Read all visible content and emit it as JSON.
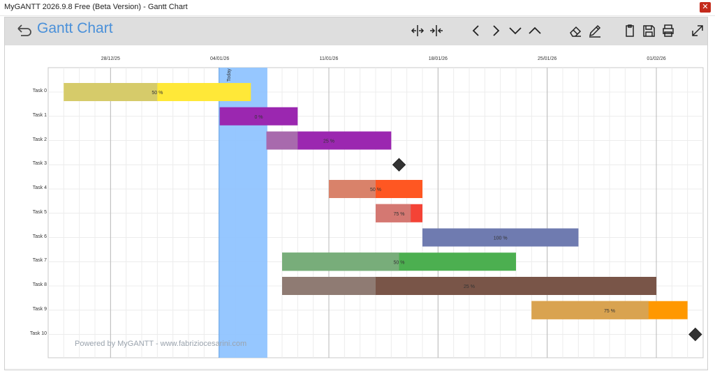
{
  "window": {
    "title": "MyGANTT 2026.9.8 Free (Beta Version) - Gantt Chart",
    "close_glyph": "✕"
  },
  "toolbar": {
    "title": "Gantt Chart",
    "icons": [
      "back-icon",
      "expand-columns-icon",
      "collapse-columns-icon",
      "chevron-left-icon",
      "chevron-right-icon",
      "chevron-down-icon",
      "chevron-up-icon",
      "eraser-icon",
      "pencil-icon",
      "clipboard-icon",
      "save-icon",
      "print-icon",
      "fullscreen-icon"
    ]
  },
  "footer": {
    "watermark": "Powered by MyGANTT - www.fabriziocesarini.com"
  },
  "chart_data": {
    "type": "gantt",
    "today_label": "Today",
    "today": "2026-01-04",
    "x_range": [
      "2025-12-24",
      "2026-02-04"
    ],
    "date_ticks": [
      {
        "label": "28/12/25",
        "date": "2025-12-28"
      },
      {
        "label": "04/01/26",
        "date": "2026-01-04"
      },
      {
        "label": "11/01/26",
        "date": "2026-01-11"
      },
      {
        "label": "18/01/26",
        "date": "2026-01-18"
      },
      {
        "label": "25/01/26",
        "date": "2026-01-25"
      },
      {
        "label": "01/02/26",
        "date": "2026-02-01"
      }
    ],
    "tasks": [
      {
        "name": "Task 0",
        "start": "2025-12-25",
        "end": "2026-01-06",
        "progress": 50,
        "color": "#ffe838",
        "done_color": "#d6cb6a",
        "label": "50 %"
      },
      {
        "name": "Task 1",
        "start": "2026-01-04",
        "end": "2026-01-09",
        "progress": 0,
        "color": "#9b27b0",
        "done_color": "#9b27b0",
        "label": "0 %"
      },
      {
        "name": "Task 2",
        "start": "2026-01-07",
        "end": "2026-01-15",
        "progress": 25,
        "color": "#9b27b0",
        "done_color": "#a86aad",
        "label": "25 %"
      },
      {
        "name": "Task 3",
        "milestone": "2026-01-15"
      },
      {
        "name": "Task 4",
        "start": "2026-01-11",
        "end": "2026-01-17",
        "progress": 50,
        "color": "#ff5722",
        "done_color": "#d9826a",
        "label": "50 %"
      },
      {
        "name": "Task 5",
        "start": "2026-01-14",
        "end": "2026-01-17",
        "progress": 75,
        "color": "#f44336",
        "done_color": "#d47872",
        "label": "75 %"
      },
      {
        "name": "Task 6",
        "start": "2026-01-17",
        "end": "2026-01-27",
        "progress": 100,
        "color": "#6f7bb0",
        "done_color": "#6f7bb0",
        "label": "100 %"
      },
      {
        "name": "Task 7",
        "start": "2026-01-08",
        "end": "2026-01-23",
        "progress": 50,
        "color": "#4caf50",
        "done_color": "#78ad7a",
        "label": "50 %"
      },
      {
        "name": "Task 8",
        "start": "2026-01-08",
        "end": "2026-02-01",
        "progress": 25,
        "color": "#795548",
        "done_color": "#8f7b73",
        "label": "25 %"
      },
      {
        "name": "Task 9",
        "start": "2026-01-24",
        "end": "2026-02-03",
        "progress": 75,
        "color": "#ff9800",
        "done_color": "#d9a350",
        "label": "75 %"
      },
      {
        "name": "Task 10",
        "milestone": "2026-02-03"
      }
    ]
  }
}
